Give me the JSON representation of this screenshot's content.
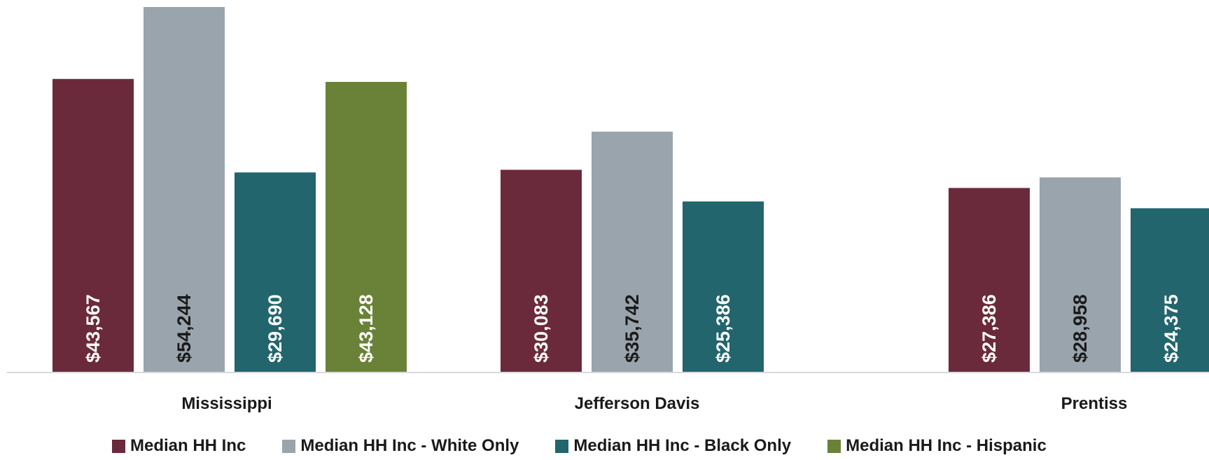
{
  "chart_data": {
    "type": "bar",
    "categories": [
      "Mississippi",
      "Jefferson Davis",
      "Prentiss"
    ],
    "series": [
      {
        "name": "Median HH Inc",
        "color": "#6b2a3b",
        "label_color": "#ffffff",
        "values": [
          43567,
          30083,
          27386
        ],
        "labels": [
          "$43,567",
          "$30,083",
          "$27,386"
        ]
      },
      {
        "name": "Median HH Inc - White Only",
        "color": "#9aa4ad",
        "label_color": "#1a1a1a",
        "values": [
          54244,
          35742,
          28958
        ],
        "labels": [
          "$54,244",
          "$35,742",
          "$28,958"
        ]
      },
      {
        "name": "Median HH Inc - Black Only",
        "color": "#22656c",
        "label_color": "#ffffff",
        "values": [
          29690,
          25386,
          24375
        ],
        "labels": [
          "$29,690",
          "$25,386",
          "$24,375"
        ]
      },
      {
        "name": "Median HH Inc - Hispanic",
        "color": "#6a8238",
        "label_color": "#ffffff",
        "values": [
          43128,
          null,
          null
        ],
        "labels": [
          "$43,128",
          null,
          null
        ]
      }
    ],
    "ylim": [
      0,
      55000
    ],
    "grid": false,
    "legend": "bottom",
    "data_labels": "inside-base-rotated"
  }
}
